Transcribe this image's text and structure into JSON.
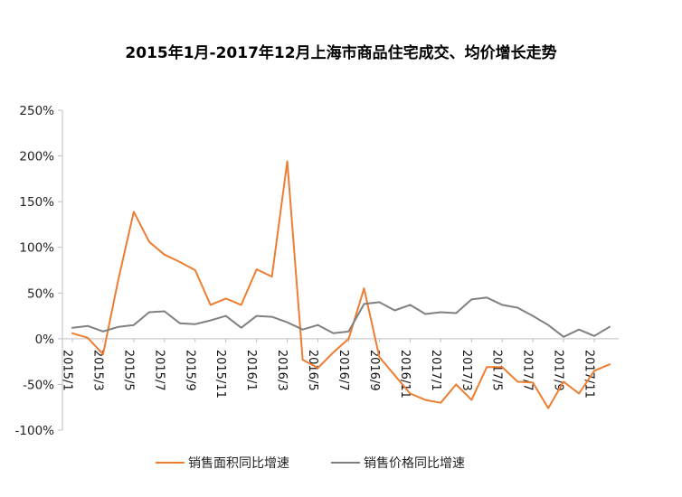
{
  "chart_data": {
    "type": "line",
    "title": "2015年1月-2017年12月上海市商品住宅成交、均价增长走势",
    "xlabel": "",
    "ylabel": "",
    "x": [
      "2015/1",
      "2015/2",
      "2015/3",
      "2015/4",
      "2015/5",
      "2015/6",
      "2015/7",
      "2015/8",
      "2015/9",
      "2015/10",
      "2015/11",
      "2015/12",
      "2016/1",
      "2016/2",
      "2016/3",
      "2016/4",
      "2016/5",
      "2016/6",
      "2016/7",
      "2016/8",
      "2016/9",
      "2016/10",
      "2016/11",
      "2016/12",
      "2017/1",
      "2017/2",
      "2017/3",
      "2017/4",
      "2017/5",
      "2017/6",
      "2017/7",
      "2017/8",
      "2017/9",
      "2017/10",
      "2017/11",
      "2017/12"
    ],
    "x_tick_labels": [
      "2015/1",
      "2015/3",
      "2015/5",
      "2015/7",
      "2015/9",
      "2015/11",
      "2016/1",
      "2016/3",
      "2016/5",
      "2016/7",
      "2016/9",
      "2016/11",
      "2017/1",
      "2017/3",
      "2017/5",
      "2017/7",
      "2017/9",
      "2017/11"
    ],
    "y_tick_labels": [
      "250%",
      "200%",
      "150%",
      "100%",
      "50%",
      "0%",
      "-50%",
      "-100%"
    ],
    "ylim": [
      -100,
      250
    ],
    "yticks": [
      250,
      200,
      150,
      100,
      50,
      0,
      -50,
      -100
    ],
    "grid": false,
    "legend_position": "bottom",
    "series": [
      {
        "name": "销售面积同比增速",
        "color": "#ED7D31",
        "values": [
          6,
          1,
          -17,
          65,
          139,
          106,
          92,
          84,
          75,
          37,
          44,
          37,
          76,
          68,
          194,
          -23,
          -32,
          -15,
          0,
          55,
          -20,
          -40,
          -60,
          -67,
          -70,
          -50,
          -67,
          -31,
          -31,
          -47,
          -48,
          -76,
          -47,
          -60,
          -35,
          -28
        ]
      },
      {
        "name": "销售价格同比增速",
        "color": "#808080",
        "values": [
          12,
          14,
          8,
          13,
          15,
          29,
          30,
          17,
          16,
          20,
          25,
          12,
          25,
          24,
          18,
          10,
          15,
          6,
          8,
          38,
          40,
          31,
          37,
          27,
          29,
          28,
          43,
          45,
          37,
          34,
          25,
          15,
          2,
          10,
          3,
          13
        ]
      }
    ]
  }
}
